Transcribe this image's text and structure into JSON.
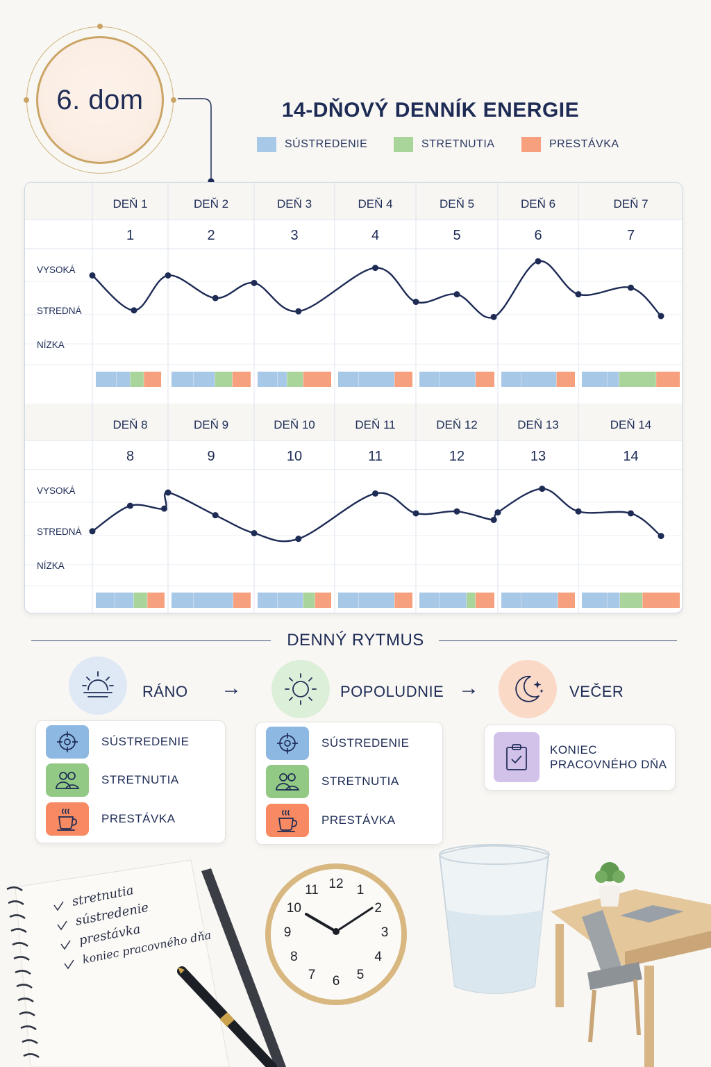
{
  "badge": {
    "text": "6. dom"
  },
  "header": {
    "title": "14-DŇOVÝ DENNÍK ENERGIE",
    "legend": [
      {
        "label": "SÚSTREDENIE",
        "color": "#a8c8e8"
      },
      {
        "label": "STRETNUTIA",
        "color": "#a9d49a"
      },
      {
        "label": "PRESTÁVKA",
        "color": "#f7a07e"
      }
    ]
  },
  "levels": [
    "VYSOKÁ",
    "STREDNÁ",
    "NÍZKA"
  ],
  "week1": {
    "days": [
      {
        "label": "DEŇ 1",
        "num": "1"
      },
      {
        "label": "DEŇ 2",
        "num": "2"
      },
      {
        "label": "DEŇ 3",
        "num": "3"
      },
      {
        "label": "DEŇ 4",
        "num": "4"
      },
      {
        "label": "DEŇ 5",
        "num": "5"
      },
      {
        "label": "DEŇ 6",
        "num": "6"
      },
      {
        "label": "DEŇ 7",
        "num": "7"
      }
    ]
  },
  "week2": {
    "days": [
      {
        "label": "DEŇ 8",
        "num": "8"
      },
      {
        "label": "DEŇ 9",
        "num": "9"
      },
      {
        "label": "DEŇ 10",
        "num": "10"
      },
      {
        "label": "DEŇ 11",
        "num": "11"
      },
      {
        "label": "DEŇ 12",
        "num": "12"
      },
      {
        "label": "DEŇ 13",
        "num": "13"
      },
      {
        "label": "DEŇ 14",
        "num": "14"
      }
    ]
  },
  "chart_data": [
    {
      "type": "line",
      "title": "",
      "x": [
        "DEŇ 1",
        "DEŇ 1",
        "DEŇ 2",
        "DEŇ 2",
        "DEŇ 3",
        "DEŇ 3",
        "DEŇ 4",
        "DEŇ 5",
        "DEŇ 5",
        "DEŇ 5",
        "DEŇ 6",
        "DEŇ 7",
        "DEŇ 7",
        "DEŇ 7"
      ],
      "y_categories": [
        "NÍZKA",
        "STREDNÁ",
        "VYSOKÁ"
      ],
      "ylim": [
        0,
        1
      ],
      "series": [
        {
          "values": [
            0.82,
            0.45,
            0.82,
            0.58,
            0.74,
            0.44,
            0.9,
            0.54,
            0.62,
            0.38,
            0.97,
            0.62,
            0.69,
            0.39
          ]
        }
      ],
      "segments": [
        [
          0.3,
          0.2,
          0.2,
          0.25
        ],
        [
          0.28,
          0.27,
          0.22,
          0.23
        ],
        [
          0.27,
          0.13,
          0.22,
          0.38
        ],
        [
          0.28,
          0.48,
          0.24
        ],
        [
          0.27,
          0.48,
          0.25
        ],
        [
          0.27,
          0.48,
          0.25
        ],
        [
          0.26,
          0.12,
          0.38,
          0.24
        ]
      ]
    },
    {
      "type": "line",
      "title": "",
      "x": [
        "DEŇ 8",
        "DEŇ 8",
        "DEŇ 8",
        "DEŇ 9",
        "DEŇ 9",
        "DEŇ 10",
        "DEŇ 10",
        "DEŇ 11",
        "DEŇ 12",
        "DEŇ 12",
        "DEŇ 12",
        "DEŇ 13",
        "DEŇ 13",
        "DEŇ 14",
        "DEŇ 14",
        "DEŇ 14"
      ],
      "y_categories": [
        "NÍZKA",
        "STREDNÁ",
        "VYSOKÁ"
      ],
      "ylim": [
        0,
        1
      ],
      "series": [
        {
          "values": [
            0.45,
            0.72,
            0.69,
            0.86,
            0.62,
            0.43,
            0.37,
            0.85,
            0.64,
            0.66,
            0.57,
            0.65,
            0.9,
            0.66,
            0.64,
            0.4
          ]
        }
      ],
      "segments": [
        [
          0.28,
          0.27,
          0.2,
          0.25
        ],
        [
          0.28,
          0.5,
          0.22
        ],
        [
          0.27,
          0.35,
          0.16,
          0.22
        ],
        [
          0.28,
          0.48,
          0.24
        ],
        [
          0.27,
          0.36,
          0.12,
          0.25
        ],
        [
          0.27,
          0.5,
          0.23
        ],
        [
          0.26,
          0.13,
          0.23,
          0.38
        ]
      ]
    }
  ],
  "rhythm": {
    "title": "DENNÝ RYTMUS",
    "phases": [
      {
        "label": "RÁNO",
        "icon": "sunrise-icon"
      },
      {
        "label": "POPOLUDNIE",
        "icon": "sun-icon"
      },
      {
        "label": "VEČER",
        "icon": "moon-icon"
      }
    ],
    "morning_items": [
      {
        "label": "SÚSTREDENIE",
        "icon": "target-icon"
      },
      {
        "label": "STRETNUTIA",
        "icon": "people-icon"
      },
      {
        "label": "PRESTÁVKA",
        "icon": "coffee-icon"
      }
    ],
    "afternoon_items": [
      {
        "label": "SÚSTREDENIE",
        "icon": "target-icon"
      },
      {
        "label": "STRETNUTIA",
        "icon": "people-icon"
      },
      {
        "label": "PRESTÁVKA",
        "icon": "coffee-icon"
      }
    ],
    "evening_item": {
      "line1": "KONIEC",
      "line2": "PRACOVNÉHO DŇA",
      "icon": "clipboard-check-icon"
    }
  },
  "notebook": {
    "items": [
      "stretnutia",
      "sústredenie",
      "prestávka",
      "koniec pracovného dňa"
    ]
  },
  "clock": {
    "numbers": [
      "12",
      "1",
      "2",
      "3",
      "4",
      "5",
      "6",
      "7",
      "8",
      "9",
      "10",
      "11"
    ]
  },
  "colors": {
    "navy": "#1d2b55",
    "focus": "#a8c8e8",
    "meeting": "#a9d49a",
    "break": "#f7a07e",
    "grid": "#dde3ec"
  }
}
